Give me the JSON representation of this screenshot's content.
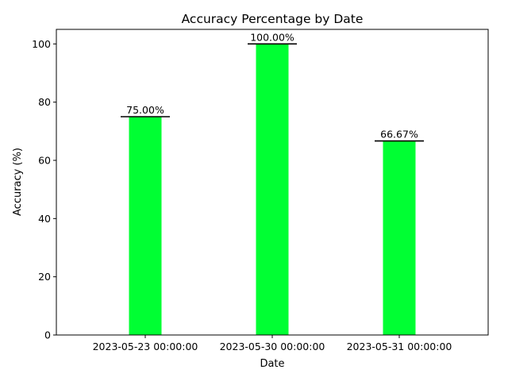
{
  "chart_data": {
    "type": "bar",
    "title": "Accuracy Percentage by Date",
    "xlabel": "Date",
    "ylabel": "Accuracy (%)",
    "categories": [
      "2023-05-23 00:00:00",
      "2023-05-30 00:00:00",
      "2023-05-31 00:00:00"
    ],
    "values": [
      75.0,
      100.0,
      66.67
    ],
    "data_labels": [
      "75.00%",
      "100.00%",
      "66.67%"
    ],
    "ylim": [
      0,
      105
    ],
    "yticks": [
      0,
      20,
      40,
      60,
      80,
      100
    ],
    "bar_color": "#00ff33",
    "marker_color": "#000000",
    "grid": false,
    "legend": "none"
  }
}
